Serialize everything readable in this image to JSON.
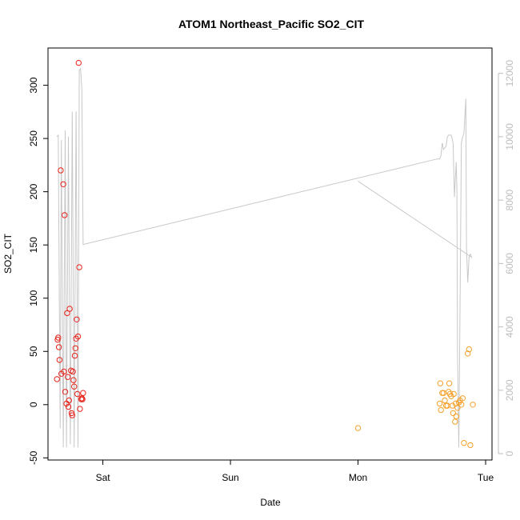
{
  "chart_data": {
    "type": "scatter",
    "title": "ATOM1 Northeast_Pacific SO2_CIT",
    "xlabel": "Date",
    "ylabel": "SO2_CIT",
    "x_unit": "days from first Sat tick (Sat=0, Sun=1, Mon=2, Tue=3)",
    "xlim": [
      -0.43,
      3.05
    ],
    "ylim": [
      -52,
      335
    ],
    "y_ticks": [
      -50,
      0,
      50,
      100,
      150,
      200,
      250,
      300
    ],
    "x_ticks": [
      {
        "x": 0,
        "label": "Sat"
      },
      {
        "x": 1,
        "label": "Sun"
      },
      {
        "x": 2,
        "label": "Mon"
      },
      {
        "x": 3,
        "label": "Tue"
      }
    ],
    "y2lim": [
      -200,
      12800
    ],
    "y2_ticks": [
      0,
      2000,
      4000,
      6000,
      8000,
      10000,
      12000
    ],
    "y2_axis_color": "#bdbdbd",
    "point_radius": 3.2,
    "series": [
      {
        "marker": "open-circle",
        "color": "#e8221a",
        "points": [
          [
            -0.36,
            24
          ],
          [
            -0.355,
            61
          ],
          [
            -0.35,
            63
          ],
          [
            -0.345,
            54
          ],
          [
            -0.34,
            42
          ],
          [
            -0.33,
            220
          ],
          [
            -0.325,
            29
          ],
          [
            -0.31,
            207
          ],
          [
            -0.305,
            31
          ],
          [
            -0.3,
            178
          ],
          [
            -0.295,
            12
          ],
          [
            -0.285,
            1
          ],
          [
            -0.28,
            86
          ],
          [
            -0.275,
            26
          ],
          [
            -0.27,
            -2
          ],
          [
            -0.265,
            4
          ],
          [
            -0.26,
            90
          ],
          [
            -0.25,
            32
          ],
          [
            -0.245,
            -8
          ],
          [
            -0.24,
            -10
          ],
          [
            -0.235,
            31
          ],
          [
            -0.23,
            23
          ],
          [
            -0.225,
            17
          ],
          [
            -0.22,
            46
          ],
          [
            -0.215,
            53
          ],
          [
            -0.21,
            62
          ],
          [
            -0.205,
            80
          ],
          [
            -0.2,
            10
          ],
          [
            -0.195,
            64
          ],
          [
            -0.19,
            321
          ],
          [
            -0.185,
            129
          ],
          [
            -0.18,
            -4
          ],
          [
            -0.17,
            5
          ],
          [
            -0.165,
            6
          ],
          [
            -0.16,
            5
          ],
          [
            -0.155,
            11
          ]
        ]
      },
      {
        "marker": "open-circle",
        "color": "#f5a02a",
        "points": [
          [
            2.0,
            -22
          ],
          [
            2.64,
            1
          ],
          [
            2.645,
            20
          ],
          [
            2.65,
            -5
          ],
          [
            2.66,
            11
          ],
          [
            2.67,
            11
          ],
          [
            2.68,
            4
          ],
          [
            2.69,
            -1
          ],
          [
            2.7,
            -1
          ],
          [
            2.71,
            12
          ],
          [
            2.715,
            20
          ],
          [
            2.72,
            10
          ],
          [
            2.73,
            8
          ],
          [
            2.74,
            -1
          ],
          [
            2.745,
            -8
          ],
          [
            2.75,
            10
          ],
          [
            2.76,
            -16
          ],
          [
            2.765,
            1
          ],
          [
            2.77,
            -11
          ],
          [
            2.78,
            -3
          ],
          [
            2.79,
            2
          ],
          [
            2.8,
            4
          ],
          [
            2.81,
            0
          ],
          [
            2.82,
            6
          ],
          [
            2.83,
            -36
          ],
          [
            2.86,
            48
          ],
          [
            2.87,
            52
          ],
          [
            2.88,
            -38
          ],
          [
            2.9,
            0
          ]
        ]
      },
      {
        "type": "line",
        "axis": "right",
        "color": "#c8c8c8",
        "points": [
          [
            -0.36,
            10000
          ],
          [
            -0.35,
            10050
          ],
          [
            -0.335,
            800
          ],
          [
            -0.325,
            9900
          ],
          [
            -0.31,
            200
          ],
          [
            -0.295,
            10200
          ],
          [
            -0.285,
            200
          ],
          [
            -0.27,
            10000
          ],
          [
            -0.255,
            300
          ],
          [
            -0.24,
            10800
          ],
          [
            -0.225,
            200
          ],
          [
            -0.21,
            10800
          ],
          [
            -0.195,
            200
          ],
          [
            -0.185,
            12100
          ],
          [
            -0.175,
            12150
          ],
          [
            -0.165,
            11500
          ],
          [
            -0.155,
            6600
          ],
          [
            2.62,
            9300
          ],
          [
            2.64,
            9300
          ],
          [
            2.65,
            9400
          ],
          [
            2.66,
            9800
          ],
          [
            2.67,
            9600
          ],
          [
            2.68,
            9650
          ],
          [
            2.69,
            9700
          ],
          [
            2.7,
            10000
          ],
          [
            2.71,
            10050
          ],
          [
            2.73,
            10050
          ],
          [
            2.745,
            9800
          ],
          [
            2.755,
            8100
          ],
          [
            2.77,
            9200
          ],
          [
            2.775,
            8400
          ],
          [
            2.78,
            3200
          ],
          [
            2.79,
            200
          ],
          [
            2.8,
            4800
          ],
          [
            2.81,
            9800
          ],
          [
            2.82,
            10000
          ],
          [
            2.83,
            10100
          ],
          [
            2.845,
            11200
          ],
          [
            2.85,
            6500
          ],
          [
            2.86,
            5400
          ],
          [
            2.87,
            6200
          ],
          [
            2.88,
            6300
          ],
          [
            2.89,
            6200
          ],
          [
            2.0,
            8600
          ]
        ]
      }
    ]
  }
}
